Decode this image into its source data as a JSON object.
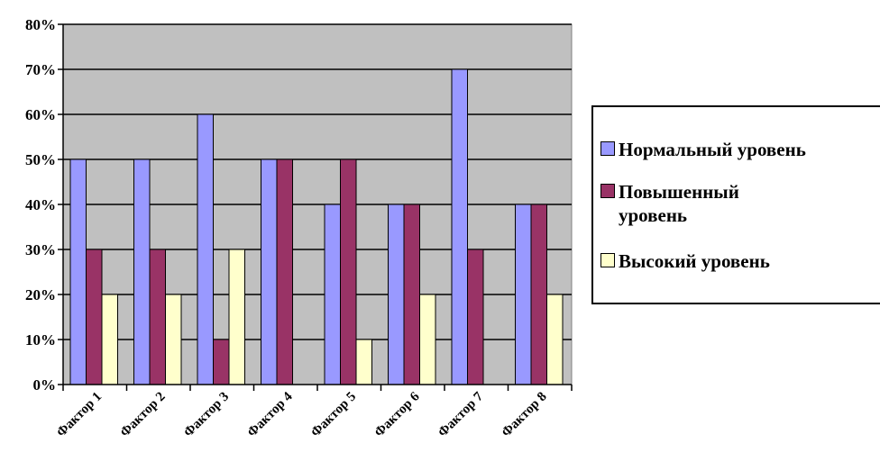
{
  "chart_data": {
    "type": "bar",
    "categories": [
      "Фактор 1",
      "Фактор 2",
      "Фактор 3",
      "Фактор 4",
      "Фактор 5",
      "Фактор 6",
      "Фактор 7",
      "Фактор 8"
    ],
    "series": [
      {
        "name": "Нормальный уровень",
        "color": "#9999FF",
        "values": [
          50,
          50,
          60,
          50,
          40,
          40,
          70,
          40
        ]
      },
      {
        "name": "Повышенный уровень",
        "color": "#993366",
        "values": [
          30,
          30,
          10,
          50,
          50,
          40,
          30,
          40
        ]
      },
      {
        "name": "Высокий уровень",
        "color": "#FFFFCC",
        "values": [
          20,
          20,
          30,
          0,
          10,
          20,
          0,
          20
        ]
      }
    ],
    "ylim": [
      0,
      80
    ],
    "yticks": [
      "0%",
      "10%",
      "20%",
      "30%",
      "40%",
      "50%",
      "60%",
      "70%",
      "80%"
    ],
    "grid": true,
    "plot_background": "#C0C0C0",
    "legend_position": "right"
  }
}
